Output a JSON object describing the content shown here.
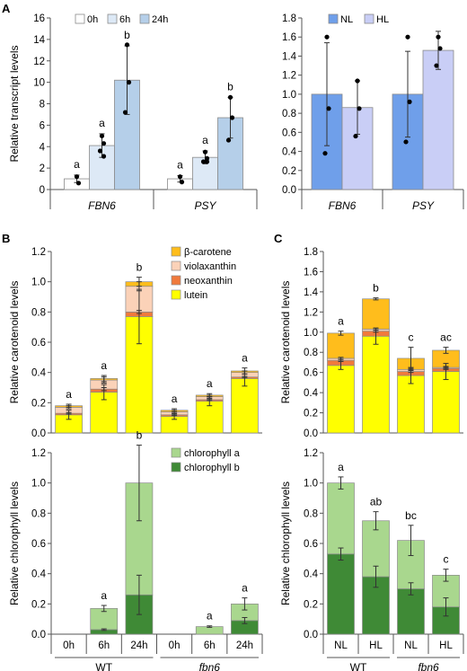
{
  "panels": {
    "A": "A",
    "B": "B",
    "C": "C"
  },
  "chart_data": [
    {
      "id": "A-left",
      "type": "bar",
      "ylabel": "Relative transcript levels",
      "ylim": [
        0,
        16
      ],
      "yticks": [
        0,
        2,
        4,
        6,
        8,
        10,
        12,
        14,
        16
      ],
      "categories": [
        "FBN6",
        "PSY"
      ],
      "legend": {
        "position": "top",
        "entries": [
          "0h",
          "6h",
          "24h"
        ]
      },
      "series": [
        {
          "name": "0h",
          "color": "#ffffff",
          "values": [
            1.0,
            1.0
          ],
          "err": [
            0.35,
            0.3
          ],
          "points": [
            [
              1.2,
              0.6
            ],
            [
              1.2,
              0.7
            ]
          ],
          "letters": [
            "a",
            "a"
          ]
        },
        {
          "name": "6h",
          "color": "#dde9f6",
          "values": [
            4.1,
            3.0
          ],
          "err": [
            1.1,
            0.6
          ],
          "points": [
            [
              5.0,
              4.3,
              3.6,
              3.1
            ],
            [
              3.5,
              2.9,
              2.6,
              2.6
            ]
          ],
          "letters": [
            "a",
            "a"
          ]
        },
        {
          "name": "24h",
          "color": "#b5cfe9",
          "values": [
            10.2,
            6.7
          ],
          "err": [
            3.2,
            1.9
          ],
          "points": [
            [
              13.5,
              10.0,
              7.2
            ],
            [
              8.6,
              6.7,
              4.6
            ]
          ],
          "letters": [
            "b",
            "b"
          ]
        }
      ]
    },
    {
      "id": "A-right",
      "type": "bar",
      "ylim": [
        0,
        1.8
      ],
      "yticks": [
        "0.0",
        "0.2",
        "0.4",
        "0.6",
        "0.8",
        "1.0",
        "1.2",
        "1.4",
        "1.6",
        "1.8"
      ],
      "categories": [
        "FBN6",
        "PSY"
      ],
      "legend": {
        "position": "top",
        "entries": [
          "NL",
          "HL"
        ]
      },
      "series": [
        {
          "name": "NL",
          "color": "#6f9fea",
          "values": [
            1.0,
            1.0
          ],
          "err": [
            0.54,
            0.45
          ],
          "points": [
            [
              1.6,
              0.85,
              0.38
            ],
            [
              1.6,
              0.92,
              0.5
            ]
          ],
          "letters": []
        },
        {
          "name": "HL",
          "color": "#c9cef6",
          "values": [
            0.86,
            1.46
          ],
          "err": [
            0.28,
            0.2
          ],
          "points": [
            [
              1.14,
              0.85,
              0.56
            ],
            [
              1.6,
              1.48,
              1.3
            ]
          ],
          "letters": []
        }
      ]
    },
    {
      "id": "B-top",
      "type": "bar",
      "ylabel": "Relative carotenoid levels",
      "ylim": [
        0,
        1.2
      ],
      "yticks": [
        "0.0",
        "0.2",
        "0.4",
        "0.6",
        "0.8",
        "1.0",
        "1.2"
      ],
      "categories": [
        "0h",
        "6h",
        "24h",
        "0h",
        "6h",
        "24h"
      ],
      "groups": [
        "WT",
        "fbn6"
      ],
      "legend": {
        "position": "top-right",
        "entries": [
          "β-carotene",
          "violaxanthin",
          "neoxanthin",
          "lutein"
        ]
      },
      "series": [
        {
          "name": "lutein",
          "color": "#ffff00",
          "values": [
            0.12,
            0.27,
            0.77,
            0.11,
            0.21,
            0.36
          ],
          "err": [
            0.03,
            0.05,
            0.18,
            0.02,
            0.03,
            0.05
          ]
        },
        {
          "name": "neoxanthin",
          "color": "#f07a3c",
          "values": [
            0.01,
            0.02,
            0.03,
            0.01,
            0.01,
            0.01
          ],
          "err": [
            0.005,
            0.01,
            0.01,
            0.005,
            0.005,
            0.005
          ]
        },
        {
          "name": "violaxanthin",
          "color": "#fbd2b8",
          "values": [
            0.04,
            0.06,
            0.17,
            0.02,
            0.02,
            0.03
          ],
          "err": [
            0.01,
            0.02,
            0.03,
            0.01,
            0.01,
            0.01
          ]
        },
        {
          "name": "β-carotene",
          "color": "#ffbd1c",
          "values": [
            0.01,
            0.01,
            0.03,
            0.01,
            0.01,
            0.01
          ],
          "err": [
            0.01,
            0.02,
            0.03,
            0.01,
            0.01,
            0.02
          ]
        }
      ],
      "letters": [
        "a",
        "a",
        "b",
        "a",
        "a",
        "a"
      ]
    },
    {
      "id": "B-bottom",
      "type": "bar",
      "ylabel": "Relative chlorophyll levels",
      "ylim": [
        0,
        1.2
      ],
      "yticks": [
        "0.0",
        "0.2",
        "0.4",
        "0.6",
        "0.8",
        "1.0",
        "1.2"
      ],
      "categories": [
        "0h",
        "6h",
        "24h",
        "0h",
        "6h",
        "24h"
      ],
      "groups": [
        "WT",
        "fbn6"
      ],
      "legend": {
        "position": "top-right",
        "entries": [
          "chlorophyll a",
          "chlorophyll b"
        ]
      },
      "series": [
        {
          "name": "chlorophyll b",
          "color": "#3f8a36",
          "values": [
            0.0,
            0.03,
            0.26,
            0.0,
            0.0,
            0.09
          ],
          "err": [
            0,
            0.005,
            0.13,
            0,
            0,
            0.02
          ]
        },
        {
          "name": "chlorophyll a",
          "color": "#a9d78e",
          "values": [
            0.0,
            0.14,
            0.74,
            0.0,
            0.05,
            0.11
          ],
          "err": [
            0,
            0.02,
            0.25,
            0,
            0.005,
            0.04
          ]
        }
      ],
      "letters": [
        "",
        "a",
        "b",
        "",
        "a",
        "a"
      ]
    },
    {
      "id": "C-top",
      "type": "bar",
      "ylim": [
        0,
        1.8
      ],
      "yticks": [
        "0.0",
        "0.2",
        "0.4",
        "0.6",
        "0.8",
        "1.0",
        "1.2",
        "1.4",
        "1.6",
        "1.8"
      ],
      "ylabel": "Relative carotenoid levels",
      "categories": [
        "NL",
        "HL",
        "NL",
        "HL"
      ],
      "groups": [
        "WT",
        "fbn6"
      ],
      "series": [
        {
          "name": "lutein",
          "color": "#ffff00",
          "values": [
            0.67,
            0.96,
            0.57,
            0.61
          ],
          "err": [
            0.04,
            0.08,
            0.08,
            0.08
          ]
        },
        {
          "name": "neoxanthin",
          "color": "#f07a3c",
          "values": [
            0.05,
            0.05,
            0.04,
            0.03
          ],
          "err": [
            0.01,
            0.01,
            0.01,
            0.01
          ]
        },
        {
          "name": "violaxanthin",
          "color": "#fbd2b8",
          "values": [
            0.02,
            0.02,
            0.02,
            0.01
          ],
          "err": [
            0.01,
            0.01,
            0.01,
            0.01
          ]
        },
        {
          "name": "β-carotene",
          "color": "#ffbd1c",
          "values": [
            0.25,
            0.3,
            0.11,
            0.17
          ],
          "err": [
            0.02,
            0.01,
            0.11,
            0.03
          ]
        }
      ],
      "letters": [
        "a",
        "b",
        "c",
        "ac"
      ]
    },
    {
      "id": "C-bottom",
      "type": "bar",
      "ylim": [
        0,
        1.2
      ],
      "yticks": [
        "0.0",
        "0.2",
        "0.4",
        "0.6",
        "0.8",
        "1.0",
        "1.2"
      ],
      "ylabel": "Relative chlorophyll levels",
      "categories": [
        "NL",
        "HL",
        "NL",
        "HL"
      ],
      "groups": [
        "WT",
        "fbn6"
      ],
      "series": [
        {
          "name": "chlorophyll b",
          "color": "#3f8a36",
          "values": [
            0.53,
            0.38,
            0.3,
            0.18
          ],
          "err": [
            0.04,
            0.07,
            0.04,
            0.06
          ]
        },
        {
          "name": "chlorophyll a",
          "color": "#a9d78e",
          "values": [
            0.47,
            0.37,
            0.32,
            0.21
          ],
          "err": [
            0.04,
            0.06,
            0.1,
            0.04
          ]
        }
      ],
      "letters": [
        "a",
        "ab",
        "bc",
        "c"
      ]
    }
  ]
}
